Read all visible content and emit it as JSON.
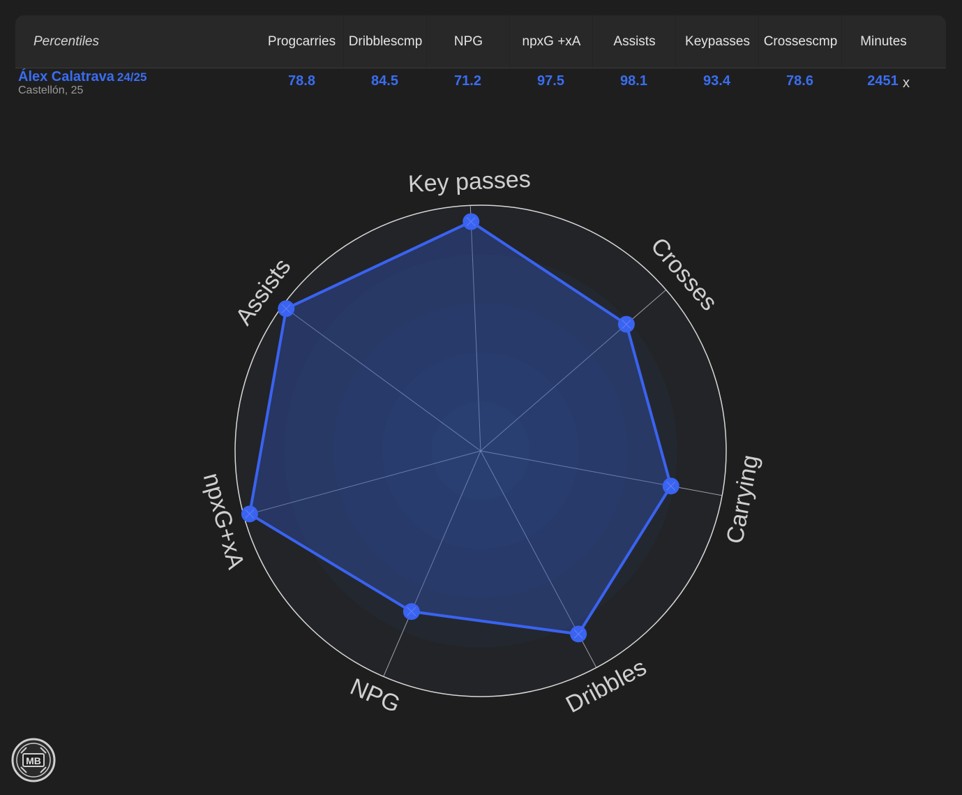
{
  "table": {
    "header_first": "Percentiles",
    "columns": [
      {
        "line1": "Prog",
        "line2": "carries"
      },
      {
        "line1": "Dribbles",
        "line2": "cmp"
      },
      {
        "line1": "NPG",
        "line2": ""
      },
      {
        "line1": "npxG +xA",
        "line2": ""
      },
      {
        "line1": "Assists",
        "line2": ""
      },
      {
        "line1": "Key",
        "line2": "passes"
      },
      {
        "line1": "Crosses",
        "line2": "cmp"
      },
      {
        "line1": "Minutes",
        "line2": ""
      }
    ],
    "row": {
      "name": "Álex Calatrava",
      "season": "24/25",
      "subtitle": "Castellón, 25",
      "values": [
        "78.8",
        "84.5",
        "71.2",
        "97.5",
        "98.1",
        "93.4",
        "78.6",
        "2451"
      ],
      "remove_label": "x"
    }
  },
  "logo_text": "MB",
  "chart_data": {
    "type": "radar",
    "axes": [
      "Key passes",
      "Crosses",
      "Carrying",
      "Dribbles",
      "NPG",
      "npxG+xA",
      "Assists"
    ],
    "values": [
      93.4,
      78.6,
      78.8,
      84.5,
      71.2,
      97.5,
      98.1
    ],
    "range": [
      0,
      100
    ],
    "colors": {
      "line": "#3a63f0",
      "fill": "#2f4ea8",
      "ring": "#d8d8d8",
      "spoke": "#c8c8d8",
      "label": "#d0d0d0"
    }
  }
}
